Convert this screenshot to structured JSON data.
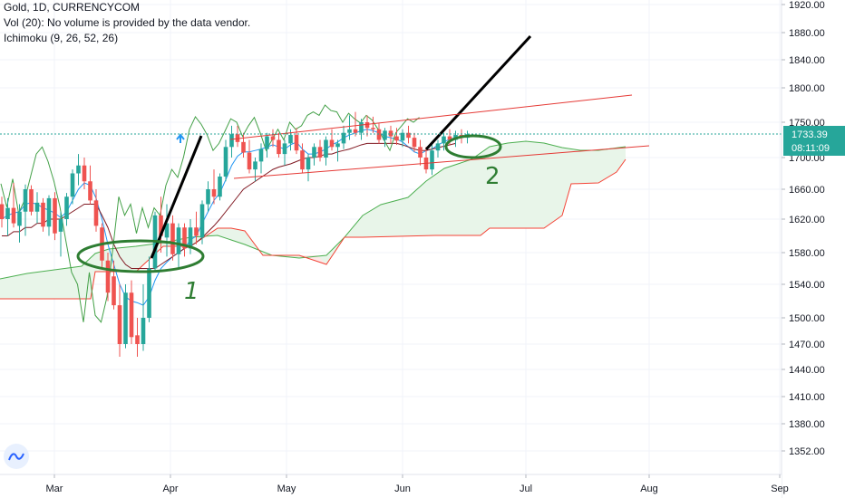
{
  "legend": {
    "line1": "Gold, 1D, CURRENCYCOM",
    "line2": "Vol (20): No volume is provided by the data vendor.",
    "line3": "Ichimoku (9, 26, 52, 26)"
  },
  "colors": {
    "up": "#26a69a",
    "down": "#ef5350",
    "conversion": "#2196f3",
    "base": "#801922",
    "lagging": "#43a047",
    "spanA": "#4caf50",
    "spanB": "#f44336",
    "cloud_up": "#e8f5e9",
    "cloud_down": "#fde8e8",
    "annotation": "#2e7d32",
    "trendline": "#000000",
    "channel": "#e53935",
    "price_label_bg": "#26a69a"
  },
  "price_label": {
    "price": "1733.39",
    "timer": "08:11:09"
  },
  "annotations": {
    "one": "1",
    "two": "2"
  },
  "logo_icon": "tradingview-logo-icon",
  "chart_data": {
    "type": "candlestick",
    "title": "Gold, 1D, CURRENCYCOM",
    "y_axis": {
      "position": "right",
      "ticks": [
        1920,
        1880,
        1840,
        1800,
        1750,
        1700,
        1660,
        1620,
        1580,
        1540,
        1500,
        1470,
        1440,
        1410,
        1380,
        1352
      ],
      "tick_labels": [
        "1920.00",
        "1880.00",
        "1840.00",
        "1800.00",
        "1750.00",
        "1700.00",
        "1660.00",
        "1620.00",
        "1580.00",
        "1540.00",
        "1500.00",
        "1470.00",
        "1440.00",
        "1410.00",
        "1380.00",
        "1352.00"
      ],
      "range": [
        1330,
        1935
      ]
    },
    "x_axis": {
      "tick_labels": [
        "Mar",
        "Apr",
        "May",
        "Jun",
        "Jul",
        "Aug",
        "Sep"
      ]
    },
    "last_price": 1733.39,
    "candles": [
      {
        "o": 1640,
        "h": 1650,
        "l": 1610,
        "c": 1620
      },
      {
        "o": 1620,
        "h": 1648,
        "l": 1600,
        "c": 1635
      },
      {
        "o": 1635,
        "h": 1668,
        "l": 1610,
        "c": 1615
      },
      {
        "o": 1612,
        "h": 1640,
        "l": 1592,
        "c": 1630
      },
      {
        "o": 1630,
        "h": 1666,
        "l": 1600,
        "c": 1660
      },
      {
        "o": 1660,
        "h": 1665,
        "l": 1625,
        "c": 1630
      },
      {
        "o": 1630,
        "h": 1656,
        "l": 1615,
        "c": 1642
      },
      {
        "o": 1642,
        "h": 1648,
        "l": 1605,
        "c": 1611
      },
      {
        "o": 1611,
        "h": 1652,
        "l": 1600,
        "c": 1648
      },
      {
        "o": 1648,
        "h": 1656,
        "l": 1595,
        "c": 1603
      },
      {
        "o": 1605,
        "h": 1630,
        "l": 1575,
        "c": 1620
      },
      {
        "o": 1620,
        "h": 1655,
        "l": 1612,
        "c": 1650
      },
      {
        "o": 1650,
        "h": 1685,
        "l": 1640,
        "c": 1680
      },
      {
        "o": 1680,
        "h": 1705,
        "l": 1665,
        "c": 1690
      },
      {
        "o": 1690,
        "h": 1700,
        "l": 1660,
        "c": 1670
      },
      {
        "o": 1670,
        "h": 1690,
        "l": 1640,
        "c": 1645
      },
      {
        "o": 1645,
        "h": 1660,
        "l": 1605,
        "c": 1612
      },
      {
        "o": 1610,
        "h": 1615,
        "l": 1560,
        "c": 1570
      },
      {
        "o": 1570,
        "h": 1580,
        "l": 1520,
        "c": 1530
      },
      {
        "o": 1550,
        "h": 1570,
        "l": 1510,
        "c": 1515
      },
      {
        "o": 1515,
        "h": 1540,
        "l": 1455,
        "c": 1470
      },
      {
        "o": 1470,
        "h": 1540,
        "l": 1465,
        "c": 1530
      },
      {
        "o": 1530,
        "h": 1545,
        "l": 1470,
        "c": 1478
      },
      {
        "o": 1480,
        "h": 1500,
        "l": 1455,
        "c": 1470
      },
      {
        "o": 1470,
        "h": 1540,
        "l": 1462,
        "c": 1500
      },
      {
        "o": 1500,
        "h": 1575,
        "l": 1495,
        "c": 1560
      },
      {
        "o": 1560,
        "h": 1630,
        "l": 1555,
        "c": 1625
      },
      {
        "o": 1625,
        "h": 1650,
        "l": 1580,
        "c": 1600
      },
      {
        "o": 1598,
        "h": 1640,
        "l": 1575,
        "c": 1615
      },
      {
        "o": 1615,
        "h": 1625,
        "l": 1570,
        "c": 1578
      },
      {
        "o": 1578,
        "h": 1615,
        "l": 1560,
        "c": 1610
      },
      {
        "o": 1610,
        "h": 1615,
        "l": 1575,
        "c": 1585
      },
      {
        "o": 1585,
        "h": 1620,
        "l": 1578,
        "c": 1610
      },
      {
        "o": 1610,
        "h": 1630,
        "l": 1590,
        "c": 1600
      },
      {
        "o": 1598,
        "h": 1645,
        "l": 1590,
        "c": 1640
      },
      {
        "o": 1640,
        "h": 1670,
        "l": 1630,
        "c": 1660
      },
      {
        "o": 1660,
        "h": 1685,
        "l": 1640,
        "c": 1650
      },
      {
        "o": 1650,
        "h": 1680,
        "l": 1645,
        "c": 1676
      },
      {
        "o": 1676,
        "h": 1725,
        "l": 1670,
        "c": 1715
      },
      {
        "o": 1715,
        "h": 1745,
        "l": 1700,
        "c": 1733
      },
      {
        "o": 1733,
        "h": 1745,
        "l": 1715,
        "c": 1722
      },
      {
        "o": 1722,
        "h": 1735,
        "l": 1700,
        "c": 1707
      },
      {
        "o": 1707,
        "h": 1725,
        "l": 1680,
        "c": 1685
      },
      {
        "o": 1685,
        "h": 1700,
        "l": 1670,
        "c": 1695
      },
      {
        "o": 1695,
        "h": 1720,
        "l": 1680,
        "c": 1712
      },
      {
        "o": 1712,
        "h": 1735,
        "l": 1700,
        "c": 1730
      },
      {
        "o": 1730,
        "h": 1740,
        "l": 1715,
        "c": 1725
      },
      {
        "o": 1725,
        "h": 1735,
        "l": 1700,
        "c": 1705
      },
      {
        "o": 1705,
        "h": 1725,
        "l": 1690,
        "c": 1720
      },
      {
        "o": 1720,
        "h": 1740,
        "l": 1710,
        "c": 1732
      },
      {
        "o": 1732,
        "h": 1742,
        "l": 1705,
        "c": 1710
      },
      {
        "o": 1710,
        "h": 1720,
        "l": 1680,
        "c": 1685
      },
      {
        "o": 1685,
        "h": 1705,
        "l": 1670,
        "c": 1700
      },
      {
        "o": 1700,
        "h": 1720,
        "l": 1690,
        "c": 1715
      },
      {
        "o": 1715,
        "h": 1725,
        "l": 1695,
        "c": 1700
      },
      {
        "o": 1700,
        "h": 1730,
        "l": 1690,
        "c": 1725
      },
      {
        "o": 1725,
        "h": 1740,
        "l": 1710,
        "c": 1715
      },
      {
        "o": 1715,
        "h": 1725,
        "l": 1695,
        "c": 1720
      },
      {
        "o": 1720,
        "h": 1745,
        "l": 1712,
        "c": 1735
      },
      {
        "o": 1735,
        "h": 1760,
        "l": 1725,
        "c": 1740
      },
      {
        "o": 1740,
        "h": 1765,
        "l": 1730,
        "c": 1735
      },
      {
        "o": 1735,
        "h": 1755,
        "l": 1725,
        "c": 1750
      },
      {
        "o": 1750,
        "h": 1760,
        "l": 1730,
        "c": 1742
      },
      {
        "o": 1742,
        "h": 1758,
        "l": 1735,
        "c": 1740
      },
      {
        "o": 1740,
        "h": 1748,
        "l": 1720,
        "c": 1725
      },
      {
        "o": 1725,
        "h": 1742,
        "l": 1715,
        "c": 1738
      },
      {
        "o": 1738,
        "h": 1745,
        "l": 1720,
        "c": 1730
      },
      {
        "o": 1730,
        "h": 1742,
        "l": 1718,
        "c": 1724
      },
      {
        "o": 1724,
        "h": 1740,
        "l": 1715,
        "c": 1735
      },
      {
        "o": 1735,
        "h": 1745,
        "l": 1720,
        "c": 1728
      },
      {
        "o": 1728,
        "h": 1735,
        "l": 1708,
        "c": 1715
      },
      {
        "o": 1715,
        "h": 1725,
        "l": 1690,
        "c": 1700
      },
      {
        "o": 1700,
        "h": 1715,
        "l": 1680,
        "c": 1685
      },
      {
        "o": 1685,
        "h": 1720,
        "l": 1678,
        "c": 1710
      },
      {
        "o": 1710,
        "h": 1725,
        "l": 1700,
        "c": 1720
      },
      {
        "o": 1720,
        "h": 1735,
        "l": 1710,
        "c": 1730
      },
      {
        "o": 1730,
        "h": 1740,
        "l": 1718,
        "c": 1725
      },
      {
        "o": 1725,
        "h": 1738,
        "l": 1715,
        "c": 1732
      },
      {
        "o": 1732,
        "h": 1740,
        "l": 1720,
        "c": 1728
      },
      {
        "o": 1728,
        "h": 1738,
        "l": 1720,
        "c": 1733
      }
    ],
    "ichimoku": {
      "conversion": [
        1620,
        1625,
        1628,
        1630,
        1640,
        1642,
        1640,
        1635,
        1632,
        1628,
        1622,
        1630,
        1645,
        1660,
        1668,
        1665,
        1648,
        1620,
        1590,
        1565,
        1540,
        1525,
        1520,
        1518,
        1515,
        1525,
        1545,
        1560,
        1568,
        1575,
        1580,
        1585,
        1595,
        1600,
        1615,
        1630,
        1645,
        1655,
        1672,
        1690,
        1702,
        1708,
        1708,
        1710,
        1712,
        1715,
        1718,
        1715,
        1712,
        1718,
        1722,
        1712,
        1705,
        1705,
        1708,
        1712,
        1718,
        1722,
        1728,
        1732,
        1735,
        1738,
        1740,
        1738,
        1735,
        1730,
        1728,
        1726,
        1722,
        1715,
        1708,
        1705,
        1710,
        1712,
        1718,
        1722,
        1726,
        1728
      ],
      "base": [
        1600,
        1600,
        1605,
        1605,
        1610,
        1610,
        1615,
        1615,
        1620,
        1620,
        1620,
        1625,
        1630,
        1635,
        1640,
        1640,
        1640,
        1625,
        1610,
        1590,
        1575,
        1565,
        1560,
        1560,
        1560,
        1560,
        1560,
        1565,
        1570,
        1575,
        1580,
        1585,
        1588,
        1592,
        1598,
        1605,
        1612,
        1620,
        1630,
        1640,
        1650,
        1660,
        1665,
        1670,
        1675,
        1680,
        1685,
        1688,
        1690,
        1692,
        1695,
        1698,
        1700,
        1700,
        1702,
        1705,
        1705,
        1708,
        1710,
        1712,
        1715,
        1718,
        1720,
        1720,
        1720,
        1720,
        1720,
        1720,
        1718,
        1715,
        1712,
        1710,
        1710,
        1712,
        1714,
        1716,
        1718,
        1720
      ]
    },
    "trendlines": [
      {
        "name": "impulse-1",
        "from": [
          31,
          1575
        ],
        "to": [
          40,
          1735
        ]
      },
      {
        "name": "impulse-2",
        "from": [
          70,
          1690
        ],
        "to": [
          87,
          1875
        ]
      },
      {
        "name": "channel-top",
        "from": [
          39,
          1728
        ],
        "to": [
          103,
          1790
        ]
      },
      {
        "name": "channel-bottom",
        "from": [
          40,
          1671
        ],
        "to": [
          106,
          1714
        ]
      }
    ]
  }
}
